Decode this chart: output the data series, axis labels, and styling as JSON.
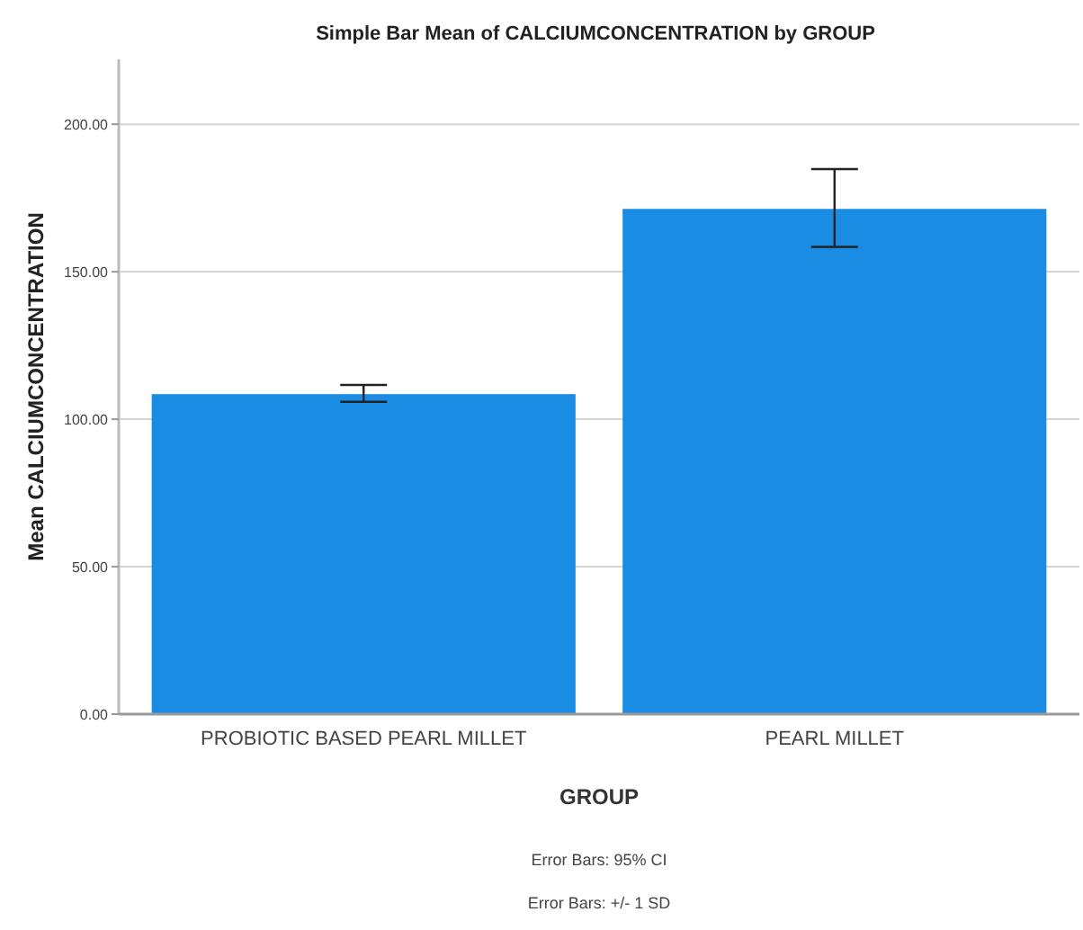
{
  "chart_data": {
    "type": "bar",
    "title": "Simple Bar Mean of CALCIUMCONCENTRATION by GROUP",
    "xlabel": "GROUP",
    "ylabel": "Mean CALCIUMCONCENTRATION",
    "categories": [
      "PROBIOTIC BASED PEARL MILLET",
      "PEARL MILLET"
    ],
    "values": [
      108.5,
      171.3
    ],
    "color": "#1a8ce3",
    "errors": [
      [
        105.9,
        111.6
      ],
      [
        158.4,
        184.8
      ]
    ],
    "ylim": [
      0,
      222
    ],
    "yticks": [
      {
        "value": 0,
        "label": "0.00"
      },
      {
        "value": 50,
        "label": "50.00"
      },
      {
        "value": 100,
        "label": "100.00"
      },
      {
        "value": 150,
        "label": "150.00"
      },
      {
        "value": 200,
        "label": "200.00"
      }
    ],
    "grid": "y",
    "annotations": [
      "Error Bars: 95% CI",
      "Error Bars: +/- 1 SD"
    ]
  }
}
